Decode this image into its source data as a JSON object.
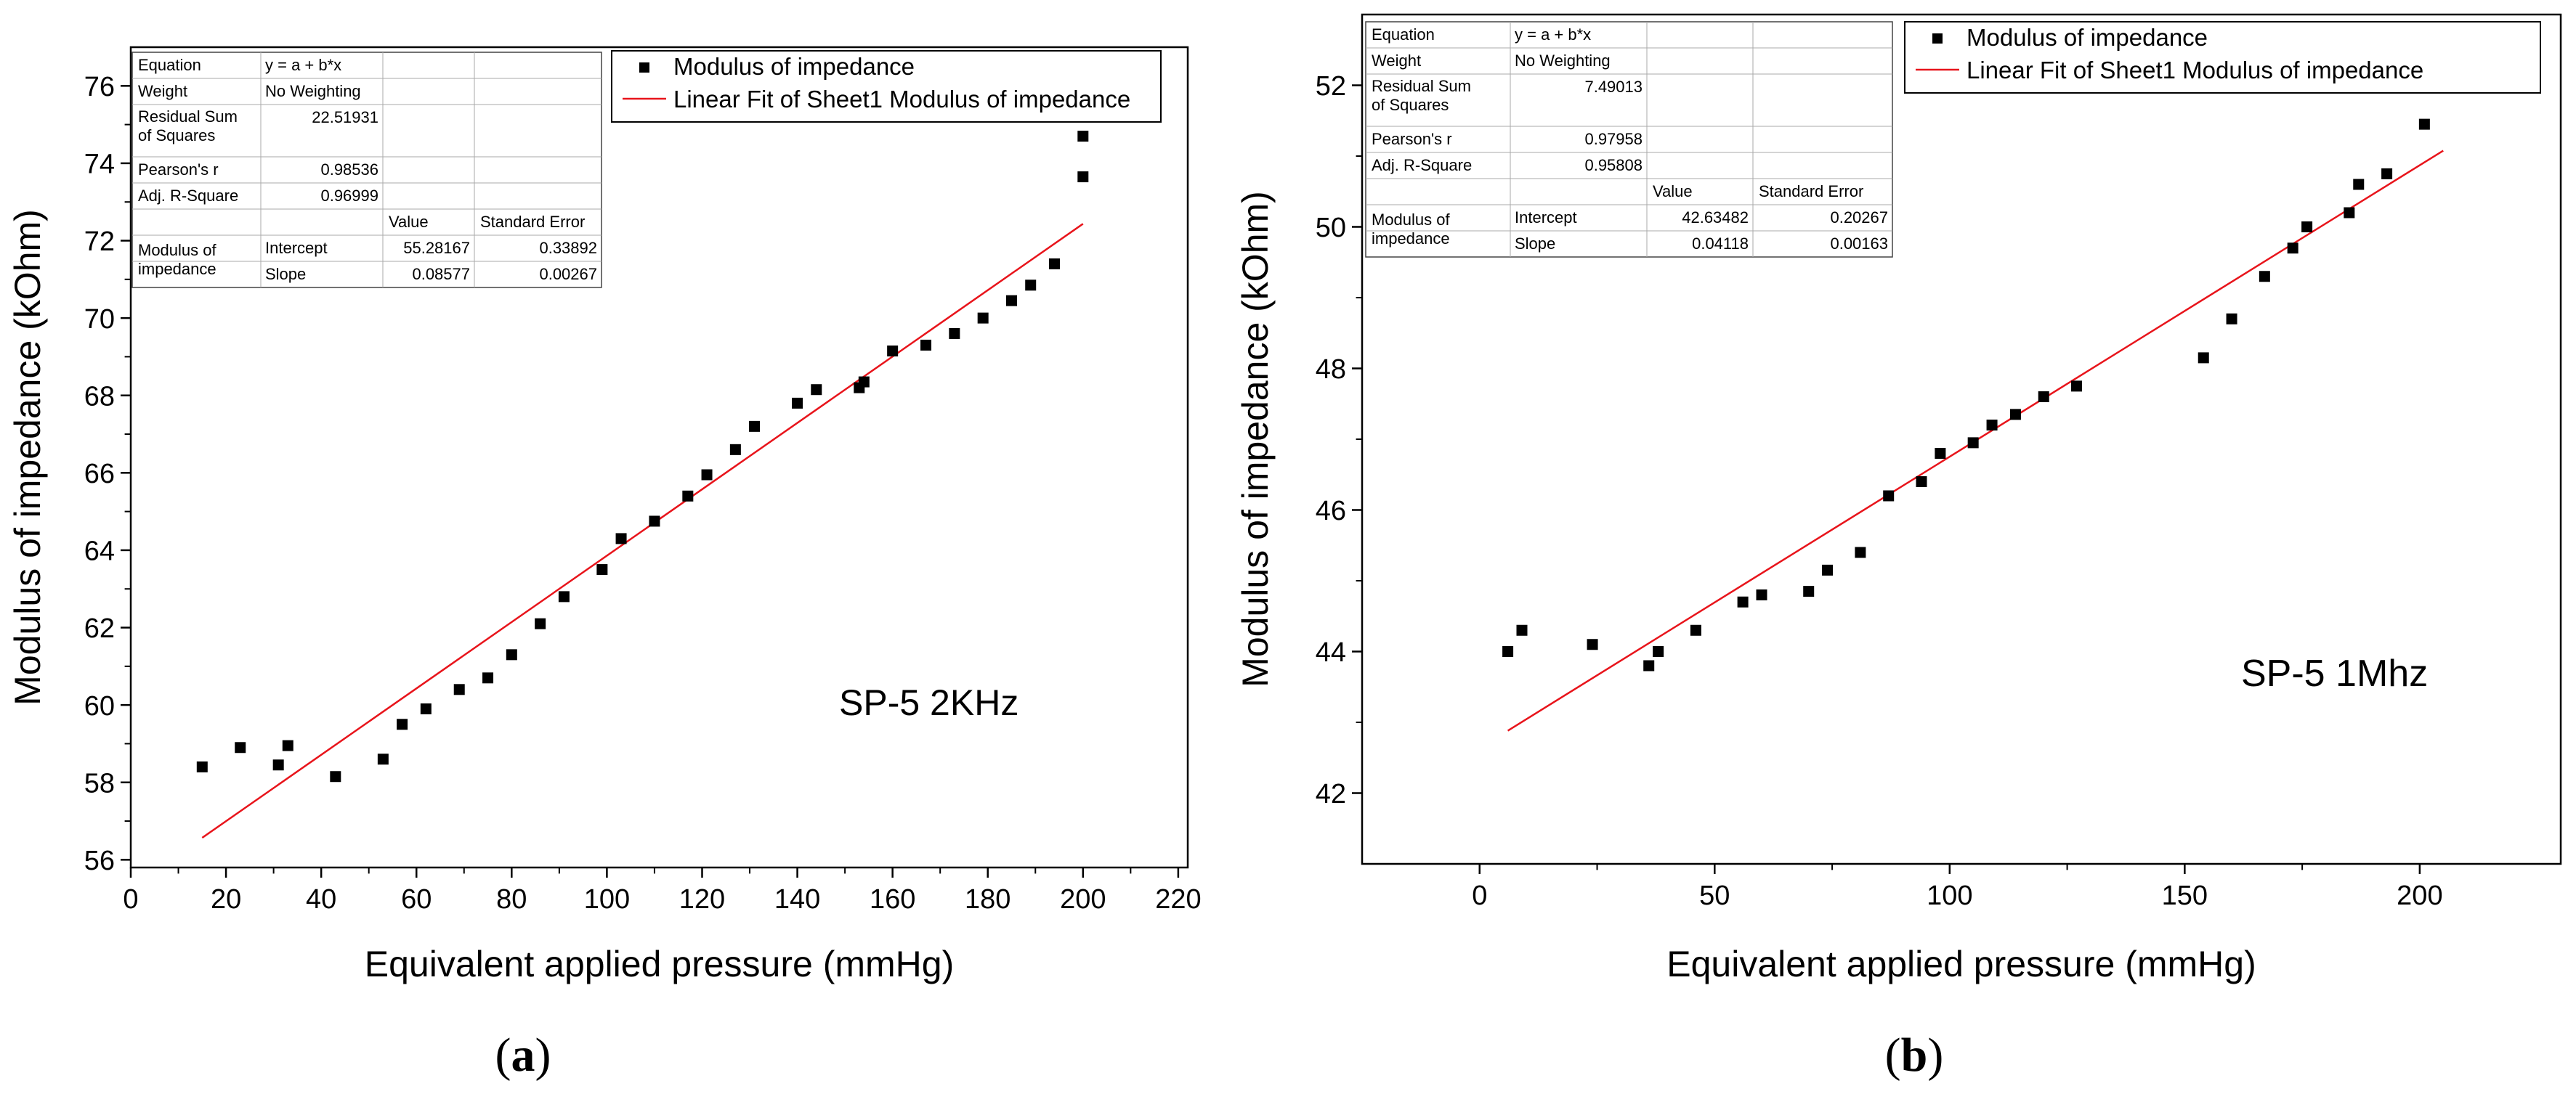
{
  "chart_data": [
    {
      "type": "scatter",
      "panel_label": "(a)",
      "panel_letter": "a",
      "xlabel": "Equivalent applied pressure (mmHg)",
      "ylabel": "Modulus of impedance (kOhm)",
      "xlim": [
        0,
        222
      ],
      "ylim": [
        55.8,
        77
      ],
      "xticks": [
        0,
        20,
        40,
        60,
        80,
        100,
        120,
        140,
        160,
        180,
        200,
        220
      ],
      "yticks": [
        56,
        58,
        60,
        62,
        64,
        66,
        68,
        70,
        72,
        74,
        76
      ],
      "annotation": "SP-5 2KHz",
      "legend": [
        "Modulus of impedance",
        "Linear Fit of Sheet1 Modulus of impedance"
      ],
      "series": [
        {
          "name": "Modulus of impedance",
          "x": [
            15,
            23,
            31,
            33,
            43,
            53,
            57,
            62,
            69,
            75,
            80,
            86,
            91,
            99,
            103,
            110,
            117,
            121,
            127,
            131,
            140,
            144,
            153,
            154,
            160,
            167,
            173,
            179,
            185,
            189,
            194,
            200,
            200
          ],
          "y": [
            58.4,
            58.9,
            58.45,
            58.95,
            58.15,
            58.6,
            59.5,
            59.9,
            60.4,
            60.7,
            61.3,
            62.1,
            62.8,
            63.5,
            64.3,
            64.75,
            65.4,
            65.95,
            66.6,
            67.2,
            67.8,
            68.15,
            68.2,
            68.35,
            69.15,
            69.3,
            69.6,
            70.0,
            70.45,
            70.85,
            71.4,
            73.65,
            74.7
          ]
        }
      ],
      "fit": {
        "name": "Linear Fit of Sheet1 Modulus of impedance",
        "intercept": 55.28167,
        "slope": 0.08577,
        "x_range": [
          15,
          200
        ]
      },
      "fit_table": {
        "header": [
          "",
          "",
          "Value",
          "Standard Error"
        ],
        "rows": [
          [
            "Equation",
            "y = a + b*x",
            "",
            ""
          ],
          [
            "Weight",
            "No Weighting",
            "",
            ""
          ],
          [
            "Residual Sum of Squares",
            "22.51931",
            "",
            ""
          ],
          [
            "Pearson's r",
            "0.98536",
            "",
            ""
          ],
          [
            "Adj. R-Square",
            "0.96999",
            "",
            ""
          ]
        ],
        "param_group": "Modulus of impedance",
        "params": [
          [
            "Intercept",
            "55.28167",
            "0.33892"
          ],
          [
            "Slope",
            "0.08577",
            "0.00267"
          ]
        ]
      }
    },
    {
      "type": "scatter",
      "panel_label": "(b)",
      "panel_letter": "b",
      "xlabel": "Equivalent applied pressure (mmHg)",
      "ylabel": "Modulus of impedance (kOhm)",
      "xlim": [
        -25,
        230
      ],
      "ylim": [
        41,
        53
      ],
      "xticks": [
        0,
        50,
        100,
        150,
        200
      ],
      "yticks": [
        42,
        44,
        46,
        48,
        50,
        52
      ],
      "annotation": "SP-5 1Mhz",
      "legend": [
        "Modulus of impedance",
        "Linear Fit of Sheet1 Modulus of impedance"
      ],
      "series": [
        {
          "name": "Modulus of impedance",
          "x": [
            6,
            9,
            24,
            36,
            38,
            46,
            56,
            60,
            70,
            74,
            81,
            87,
            94,
            98,
            105,
            109,
            114,
            120,
            127,
            154,
            160,
            167,
            173,
            176,
            185,
            187,
            193,
            201
          ],
          "y": [
            44.0,
            44.3,
            44.1,
            43.8,
            44.0,
            44.3,
            44.7,
            44.8,
            44.85,
            45.15,
            45.4,
            46.2,
            46.4,
            46.8,
            46.95,
            47.2,
            47.35,
            47.6,
            47.75,
            48.15,
            48.7,
            49.3,
            49.7,
            50.0,
            50.2,
            50.6,
            50.75,
            51.45
          ]
        }
      ],
      "fit": {
        "name": "Linear Fit of Sheet1 Modulus of impedance",
        "intercept": 42.63482,
        "slope": 0.04118,
        "x_range": [
          6,
          205
        ]
      },
      "fit_table": {
        "header": [
          "",
          "",
          "Value",
          "Standard Error"
        ],
        "rows": [
          [
            "Equation",
            "y = a + b*x",
            "",
            ""
          ],
          [
            "Weight",
            "No Weighting",
            "",
            ""
          ],
          [
            "Residual Sum of Squares",
            "7.49013",
            "",
            ""
          ],
          [
            "Pearson's r",
            "0.97958",
            "",
            ""
          ],
          [
            "Adj. R-Square",
            "0.95808",
            "",
            ""
          ]
        ],
        "param_group": "Modulus of impedance",
        "params": [
          [
            "Intercept",
            "42.63482",
            "0.20267"
          ],
          [
            "Slope",
            "0.04118",
            "0.00163"
          ]
        ]
      }
    }
  ],
  "colors": {
    "points": "#000000",
    "fit_line": "#e8141b",
    "axes": "#000000"
  }
}
